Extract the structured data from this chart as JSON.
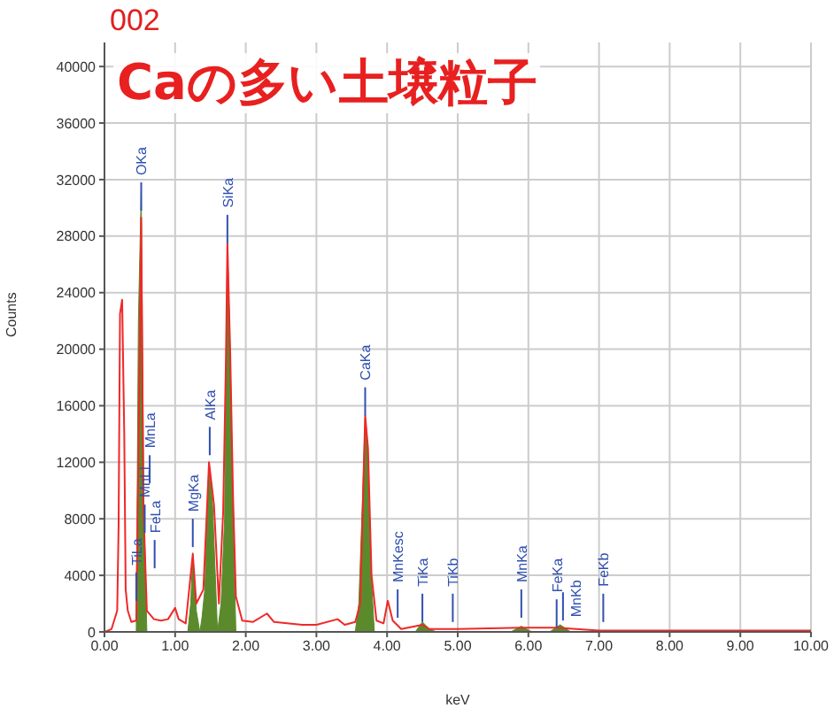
{
  "chart_data": {
    "type": "line",
    "subtitle": "002",
    "title": "Caの多い土壌粒子",
    "xlabel": "keV",
    "ylabel": "Counts",
    "xlim": [
      0,
      10
    ],
    "ylim": [
      0,
      41700
    ],
    "xticks": [
      {
        "value": 0,
        "label": "0.00"
      },
      {
        "value": 1,
        "label": "1.00"
      },
      {
        "value": 2,
        "label": "2.00"
      },
      {
        "value": 3,
        "label": "3.00"
      },
      {
        "value": 4,
        "label": "4.00"
      },
      {
        "value": 5,
        "label": "5.00"
      },
      {
        "value": 6,
        "label": "6.00"
      },
      {
        "value": 7,
        "label": "7.00"
      },
      {
        "value": 8,
        "label": "8.00"
      },
      {
        "value": 9,
        "label": "9.00"
      },
      {
        "value": 10,
        "label": "10.00"
      }
    ],
    "yticks": [
      0,
      4000,
      8000,
      12000,
      16000,
      20000,
      24000,
      28000,
      32000,
      36000,
      40000
    ],
    "grid": true,
    "series": [
      {
        "type": "line",
        "color": "#f02828",
        "x": [
          0,
          0.1,
          0.18,
          0.2,
          0.22,
          0.25,
          0.28,
          0.3,
          0.33,
          0.38,
          0.45,
          0.5,
          0.52,
          0.55,
          0.6,
          0.7,
          0.8,
          0.9,
          1.0,
          1.05,
          1.15,
          1.25,
          1.3,
          1.4,
          1.48,
          1.55,
          1.62,
          1.68,
          1.72,
          1.74,
          1.78,
          1.82,
          1.86,
          1.95,
          2.1,
          2.3,
          2.4,
          2.8,
          3.0,
          3.3,
          3.4,
          3.55,
          3.62,
          3.69,
          3.73,
          3.78,
          3.85,
          3.95,
          4.01,
          4.08,
          4.2,
          4.5,
          4.6,
          5.0,
          5.9,
          6.4,
          7.0,
          8.0,
          10.0
        ],
        "values": [
          0,
          200,
          1500,
          7500,
          22500,
          23500,
          14000,
          3000,
          1500,
          700,
          800,
          20000,
          29300,
          9000,
          1500,
          900,
          800,
          900,
          1700,
          900,
          600,
          5500,
          2000,
          3000,
          12000,
          9000,
          2000,
          8500,
          19500,
          27500,
          19700,
          9500,
          2500,
          800,
          700,
          1300,
          700,
          500,
          500,
          900,
          500,
          700,
          2000,
          15300,
          13000,
          4000,
          800,
          600,
          2200,
          800,
          200,
          500,
          200,
          200,
          300,
          300,
          100,
          100,
          100
        ]
      },
      {
        "type": "area",
        "color": "#5b8a2c",
        "x": [
          0.45,
          0.48,
          0.52,
          0.56,
          0.6,
          1.18,
          1.22,
          1.25,
          1.3,
          1.35,
          1.38,
          1.42,
          1.48,
          1.53,
          1.6,
          1.65,
          1.7,
          1.72,
          1.74,
          1.78,
          1.82,
          1.86,
          3.55,
          3.6,
          3.65,
          3.69,
          3.72,
          3.77,
          3.82,
          4.4,
          4.5,
          4.6,
          4.7,
          5.75,
          5.9,
          6.05,
          6.3,
          6.45,
          6.6
        ],
        "values": [
          0,
          22000,
          31200,
          8000,
          0,
          0,
          2000,
          5600,
          1500,
          0,
          1000,
          3000,
          12000,
          9000,
          0,
          2000,
          8000,
          19000,
          27500,
          19500,
          8000,
          0,
          0,
          2000,
          9000,
          15300,
          13500,
          4500,
          0,
          0,
          700,
          200,
          0,
          0,
          400,
          0,
          0,
          500,
          0
        ]
      }
    ],
    "annotations": [
      {
        "text": "TiLa",
        "x": 0.45,
        "y": 2200
      },
      {
        "text": "OKa",
        "x": 0.52,
        "y": 29800
      },
      {
        "text": "MnLl",
        "x": 0.57,
        "y": 7000
      },
      {
        "text": "MnLa",
        "x": 0.64,
        "y": 10500
      },
      {
        "text": "FeLa",
        "x": 0.71,
        "y": 4500
      },
      {
        "text": "MgKa",
        "x": 1.25,
        "y": 6000
      },
      {
        "text": "AlKa",
        "x": 1.49,
        "y": 12500
      },
      {
        "text": "SiKa",
        "x": 1.74,
        "y": 27500
      },
      {
        "text": "CaKa",
        "x": 3.69,
        "y": 15300
      },
      {
        "text": "MnKesc",
        "x": 4.15,
        "y": 1000
      },
      {
        "text": "TiKa",
        "x": 4.5,
        "y": 700
      },
      {
        "text": "TiKb",
        "x": 4.93,
        "y": 700
      },
      {
        "text": "MnKa",
        "x": 5.9,
        "y": 1000
      },
      {
        "text": "FeKa",
        "x": 6.4,
        "y": 300
      },
      {
        "text": "MnKb",
        "x": 6.49,
        "y": 800
      },
      {
        "text": "FeKb",
        "x": 7.06,
        "y": 700
      }
    ]
  }
}
